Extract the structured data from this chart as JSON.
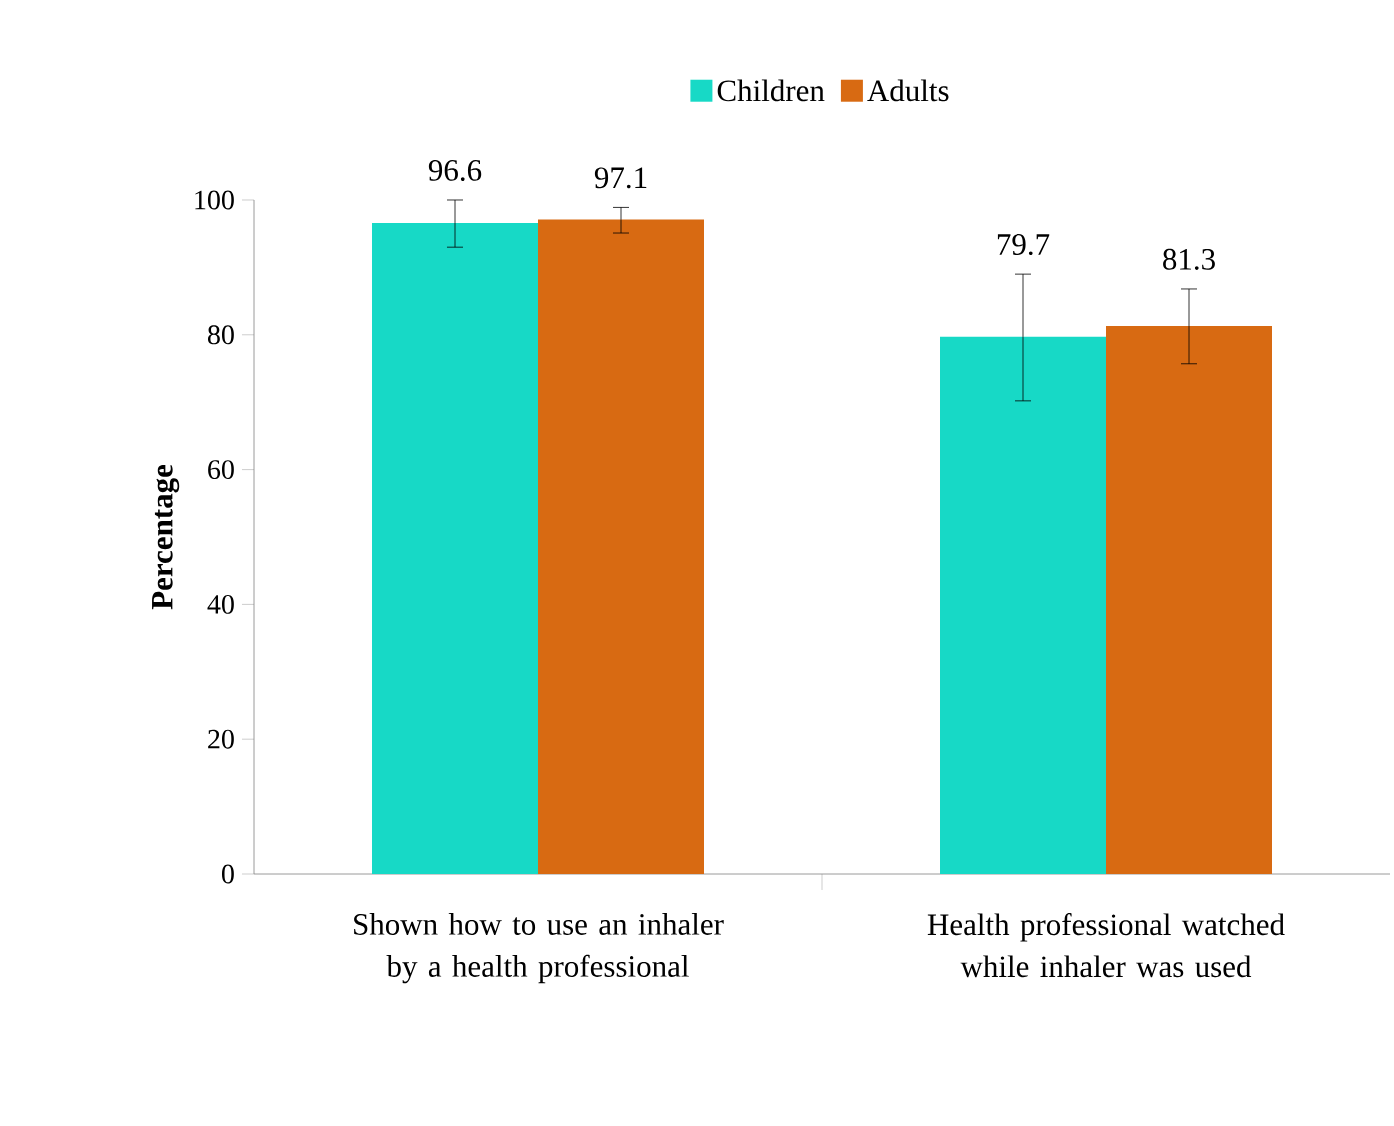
{
  "chart_data": {
    "type": "bar",
    "ylabel": "Percentage",
    "categories": [
      "Shown how to use an inhaler by a health professional",
      "Health professional watched while inhaler was used"
    ],
    "series": [
      {
        "name": "Children",
        "color": "#17d9c6",
        "values": [
          96.6,
          79.7
        ],
        "errors": [
          [
            93,
            100
          ],
          [
            70.2,
            89
          ]
        ]
      },
      {
        "name": "Adults",
        "color": "#d86a12",
        "values": [
          97.1,
          81.3
        ],
        "errors": [
          [
            95.1,
            98.9
          ],
          [
            75.7,
            86.8
          ]
        ]
      }
    ],
    "ylim": [
      0,
      100
    ],
    "yticks": [
      0,
      20,
      40,
      60,
      80,
      100
    ],
    "data_labels": true,
    "legend": "top",
    "grid": false
  }
}
